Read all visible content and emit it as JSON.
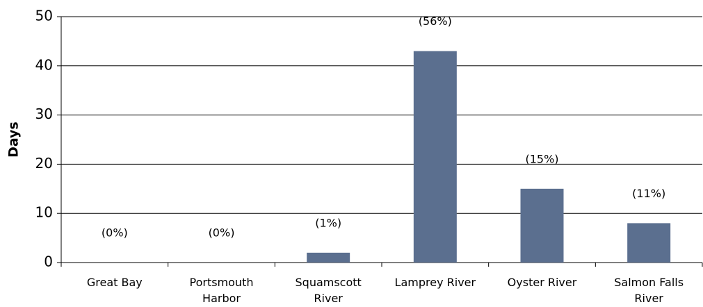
{
  "chart_data": {
    "type": "bar",
    "ylabel": "Days",
    "categories": [
      "Great Bay",
      "Portsmouth Harbor",
      "Squamscott River",
      "Lamprey River",
      "Oyster River",
      "Salmon Falls River"
    ],
    "values": [
      0,
      0,
      2,
      43,
      15,
      8
    ],
    "annotations": [
      "(0%)",
      "(0%)",
      "(1%)",
      "(56%)",
      "(15%)",
      "(11%)"
    ],
    "color": "#5b6f8f",
    "ylim": [
      0,
      50
    ],
    "yticks": [
      0,
      10,
      20,
      30,
      40,
      50
    ],
    "grid": true
  }
}
